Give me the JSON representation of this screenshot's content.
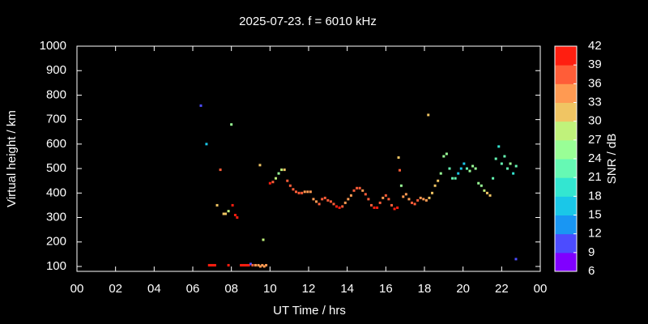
{
  "chart_data": {
    "type": "scatter",
    "title": "2025-07-23. f = 6010 kHz",
    "x_label": "UT Time / hrs",
    "y_label": "Virtual height / km",
    "xlim": [
      0,
      24
    ],
    "xticks": [
      {
        "value": 0,
        "label": "00"
      },
      {
        "value": 2,
        "label": "02"
      },
      {
        "value": 4,
        "label": "04"
      },
      {
        "value": 6,
        "label": "06"
      },
      {
        "value": 8,
        "label": "08"
      },
      10,
      12,
      14,
      16,
      18,
      20,
      22,
      {
        "value": 24,
        "label": "00"
      }
    ],
    "ylim": [
      80,
      1000
    ],
    "yticks": [
      100,
      200,
      300,
      400,
      500,
      600,
      700,
      800,
      900,
      1000
    ],
    "colorbar": {
      "label": "SNR / dB",
      "lim": [
        6,
        42
      ],
      "ticks": [
        6,
        9,
        12,
        15,
        18,
        21,
        24,
        27,
        30,
        33,
        36,
        39,
        42
      ],
      "colors": [
        "#8000ff",
        "#4c4cff",
        "#1996f3",
        "#1ac7e8",
        "#33e6d1",
        "#66f9b4",
        "#99fe96",
        "#c0f27b",
        "#f0c563",
        "#ff9a52",
        "#ff5d38",
        "#ff1e10"
      ]
    },
    "x": [
      6.42,
      6.71,
      8.0,
      9.48,
      9.65,
      18.2,
      22.74,
      6.85,
      6.95,
      7.05,
      7.15,
      7.85,
      8.5,
      8.6,
      8.7,
      8.8,
      8.9,
      9.0,
      9.1,
      9.25,
      9.4,
      9.5,
      9.6,
      9.7,
      9.8,
      7.26,
      7.43,
      7.6,
      7.7,
      7.85,
      8.06,
      8.2,
      8.3,
      10.0,
      10.15,
      10.3,
      10.45,
      10.6,
      10.75,
      10.9,
      11.05,
      11.2,
      11.35,
      11.5,
      11.65,
      11.8,
      11.95,
      12.1,
      12.25,
      12.4,
      12.55,
      12.7,
      12.85,
      13.0,
      13.15,
      13.3,
      13.45,
      13.6,
      13.75,
      13.9,
      14.05,
      14.2,
      14.35,
      14.5,
      14.65,
      14.8,
      14.95,
      15.1,
      15.25,
      15.4,
      15.55,
      15.7,
      15.85,
      16.0,
      16.15,
      16.3,
      16.45,
      16.6,
      16.66,
      16.72,
      16.8,
      16.9,
      17.05,
      17.2,
      17.35,
      17.5,
      17.65,
      17.8,
      17.95,
      18.1,
      18.25,
      18.4,
      18.55,
      18.7,
      18.85,
      19.0,
      19.15,
      19.3,
      19.45,
      19.6,
      19.75,
      19.9,
      20.05,
      20.2,
      20.35,
      20.5,
      20.65,
      20.8,
      20.95,
      21.1,
      21.25,
      21.4,
      21.55,
      21.7,
      21.85,
      22.0,
      22.15,
      22.3,
      22.45,
      22.6,
      22.75
    ],
    "values": [
      757,
      600,
      680,
      514,
      209,
      719,
      130,
      105,
      105,
      105,
      105,
      105,
      105,
      105,
      105,
      105,
      105,
      110,
      105,
      105,
      105,
      100,
      105,
      100,
      105,
      350,
      495,
      315,
      315,
      326,
      350,
      310,
      300,
      440,
      445,
      460,
      480,
      495,
      495,
      450,
      430,
      415,
      405,
      400,
      400,
      405,
      405,
      405,
      375,
      365,
      355,
      375,
      380,
      370,
      365,
      355,
      345,
      340,
      345,
      360,
      375,
      390,
      410,
      420,
      420,
      410,
      395,
      375,
      350,
      340,
      340,
      360,
      380,
      390,
      375,
      350,
      335,
      340,
      545,
      493,
      430,
      385,
      395,
      375,
      360,
      355,
      370,
      380,
      375,
      370,
      380,
      400,
      430,
      450,
      480,
      550,
      560,
      500,
      460,
      460,
      480,
      500,
      520,
      500,
      490,
      510,
      500,
      440,
      430,
      410,
      400,
      390,
      460,
      540,
      590,
      520,
      550,
      500,
      520,
      480,
      510
    ],
    "color_values": [
      10,
      15,
      25,
      32,
      29,
      32,
      10,
      40,
      40,
      40,
      40,
      40,
      40,
      40,
      40,
      40,
      40,
      10,
      38,
      35,
      34,
      33,
      34,
      34,
      33,
      32,
      37,
      30,
      30,
      28,
      40,
      40,
      40,
      40,
      38,
      28,
      25,
      27,
      30,
      38,
      37,
      37,
      36,
      36,
      36,
      35,
      35,
      35,
      34,
      35,
      36,
      38,
      37,
      36,
      36,
      38,
      39,
      39,
      38,
      33,
      33,
      35,
      36,
      37,
      36,
      35,
      36,
      37,
      38,
      39,
      39,
      38,
      35,
      36,
      36,
      38,
      40,
      39,
      32,
      38,
      24,
      33,
      33,
      34,
      38,
      38,
      36,
      34,
      33,
      34,
      32,
      30,
      30,
      30,
      26,
      24,
      24,
      22,
      22,
      22,
      17,
      17,
      15,
      22,
      25,
      24,
      26,
      25,
      26,
      28,
      30,
      32,
      22,
      21,
      20,
      22,
      22,
      22,
      24,
      20,
      22
    ]
  }
}
